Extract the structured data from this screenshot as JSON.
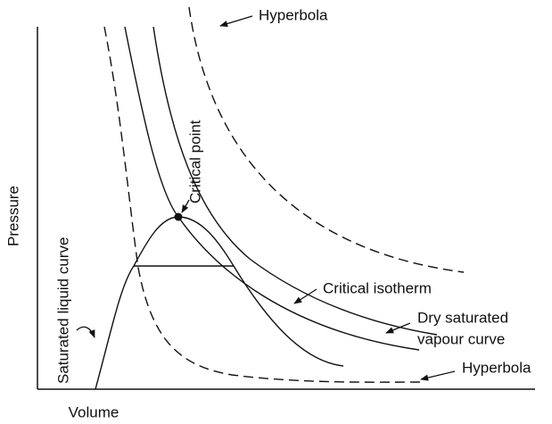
{
  "axes": {
    "y_label": "Pressure",
    "x_label": "Volume"
  },
  "labels": {
    "hyperbola_upper": "Hyperbola",
    "hyperbola_lower": "Hyperbola",
    "critical_point": "Critical point",
    "critical_isotherm": "Critical isotherm",
    "dry_saturated": [
      "Dry saturated",
      "vapour curve"
    ],
    "saturated_liquid": "Saturated liquid curve"
  }
}
